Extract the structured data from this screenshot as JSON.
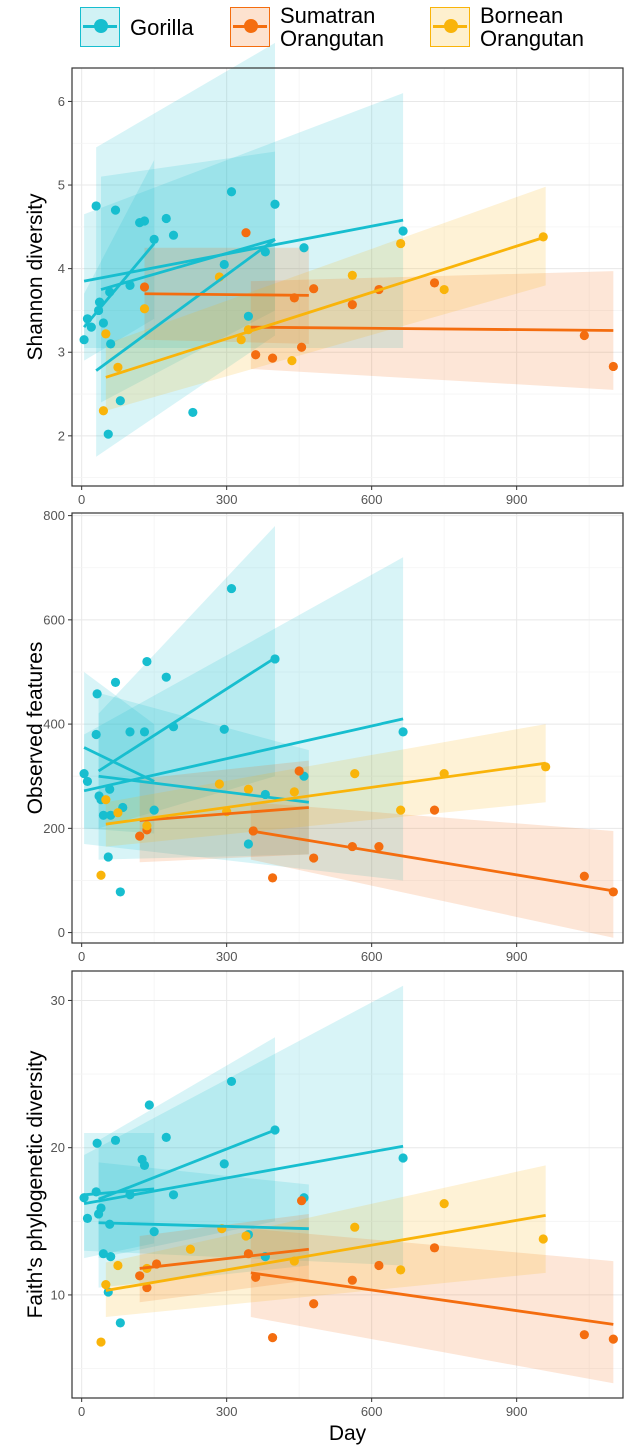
{
  "legend": {
    "items": [
      {
        "label_lines": [
          "Gorilla"
        ],
        "color": "#17BECF"
      },
      {
        "label_lines": [
          "Sumatran",
          "Orangutan"
        ],
        "color": "#F46D0F"
      },
      {
        "label_lines": [
          "Bornean",
          "Orangutan"
        ],
        "color": "#F9B40A"
      }
    ]
  },
  "chart_data": [
    {
      "type": "scatter",
      "ylabel": "Shannon diversity",
      "xlabel": "",
      "xlim": [
        -20,
        1120
      ],
      "ylim": [
        1.4,
        6.4
      ],
      "xticks": [
        0,
        300,
        600,
        900
      ],
      "yticks": [
        2,
        3,
        4,
        5,
        6
      ],
      "grid": true,
      "series": [
        {
          "name": "Gorilla",
          "color": "#17BECF",
          "x": [
            5,
            12,
            20,
            30,
            35,
            37,
            45,
            55,
            58,
            60,
            70,
            80,
            100,
            120,
            130,
            150,
            175,
            190,
            230,
            295,
            310,
            345,
            380,
            400,
            460,
            665
          ],
          "y": [
            3.15,
            3.4,
            3.3,
            4.75,
            3.5,
            3.6,
            3.35,
            2.02,
            3.72,
            3.1,
            4.7,
            2.42,
            3.8,
            4.55,
            4.57,
            4.35,
            4.6,
            4.4,
            2.28,
            4.05,
            4.92,
            3.43,
            4.2,
            4.77,
            4.25,
            4.45
          ],
          "fits": [
            {
              "x": [
                5,
                665
              ],
              "y": [
                3.85,
                4.58
              ],
              "ci_low": [
                3.05,
                3.05
              ],
              "ci_high": [
                4.65,
                6.1
              ]
            },
            {
              "x": [
                30,
                400
              ],
              "y": [
                2.78,
                4.35
              ],
              "ci_low": [
                1.75,
                3.2
              ],
              "ci_high": [
                5.45,
                6.7
              ]
            },
            {
              "x": [
                40,
                400
              ],
              "y": [
                3.75,
                4.35
              ],
              "ci_low": [
                2.4,
                3.5
              ],
              "ci_high": [
                5.1,
                5.4
              ]
            },
            {
              "x": [
                5,
                150
              ],
              "y": [
                3.3,
                4.3
              ],
              "ci_low": [
                2.9,
                3.4
              ],
              "ci_high": [
                3.7,
                5.3
              ]
            }
          ]
        },
        {
          "name": "Sumatran Orangutan",
          "color": "#F46D0F",
          "x": [
            130,
            340,
            360,
            395,
            440,
            455,
            480,
            560,
            615,
            730,
            1040,
            1100
          ],
          "y": [
            3.78,
            4.43,
            2.97,
            2.93,
            3.65,
            3.06,
            3.76,
            3.57,
            3.75,
            3.83,
            3.2,
            2.83
          ],
          "fits": [
            {
              "x": [
                130,
                470
              ],
              "y": [
                3.7,
                3.68
              ],
              "ci_low": [
                3.15,
                3.1
              ],
              "ci_high": [
                4.25,
                4.25
              ]
            },
            {
              "x": [
                350,
                1100
              ],
              "y": [
                3.3,
                3.26
              ],
              "ci_low": [
                2.8,
                2.55
              ],
              "ci_high": [
                3.85,
                3.97
              ]
            }
          ]
        },
        {
          "name": "Bornean Orangutan",
          "color": "#F9B40A",
          "x": [
            45,
            50,
            75,
            130,
            285,
            330,
            345,
            435,
            560,
            660,
            750,
            955
          ],
          "y": [
            2.3,
            3.22,
            2.82,
            3.52,
            3.9,
            3.15,
            3.27,
            2.9,
            3.92,
            4.3,
            3.75,
            4.38
          ],
          "fits": [
            {
              "x": [
                50,
                960
              ],
              "y": [
                2.7,
                4.38
              ],
              "ci_low": [
                2.3,
                3.8
              ],
              "ci_high": [
                3.1,
                4.98
              ]
            }
          ]
        }
      ]
    },
    {
      "type": "scatter",
      "ylabel": "Observed features",
      "xlabel": "",
      "xlim": [
        -20,
        1120
      ],
      "ylim": [
        -20,
        805
      ],
      "xticks": [
        0,
        300,
        600,
        900
      ],
      "yticks": [
        0,
        200,
        400,
        600,
        800
      ],
      "grid": true,
      "series": [
        {
          "name": "Gorilla",
          "color": "#17BECF",
          "x": [
            5,
            12,
            30,
            32,
            36,
            40,
            45,
            55,
            58,
            60,
            70,
            80,
            85,
            100,
            130,
            135,
            150,
            175,
            190,
            295,
            310,
            345,
            380,
            400,
            460,
            665
          ],
          "y": [
            305,
            290,
            380,
            458,
            262,
            255,
            225,
            145,
            275,
            225,
            480,
            78,
            240,
            385,
            385,
            520,
            235,
            490,
            395,
            390,
            660,
            170,
            265,
            525,
            300,
            385
          ],
          "fits": [
            {
              "x": [
                5,
                665
              ],
              "y": [
                272,
                410
              ],
              "ci_low": [
                170,
                100
              ],
              "ci_high": [
                380,
                720
              ]
            },
            {
              "x": [
                35,
                400
              ],
              "y": [
                310,
                527
              ],
              "ci_low": [
                200,
                300
              ],
              "ci_high": [
                420,
                780
              ]
            },
            {
              "x": [
                5,
                150
              ],
              "y": [
                355,
                290
              ],
              "ci_low": [
                200,
                190
              ],
              "ci_high": [
                500,
                400
              ]
            },
            {
              "x": [
                35,
                470
              ],
              "y": [
                300,
                250
              ],
              "ci_low": [
                140,
                150
              ],
              "ci_high": [
                460,
                350
              ]
            }
          ]
        },
        {
          "name": "Sumatran Orangutan",
          "color": "#F46D0F",
          "x": [
            120,
            135,
            355,
            395,
            450,
            480,
            560,
            615,
            730,
            1040,
            1100
          ],
          "y": [
            185,
            197,
            195,
            105,
            310,
            143,
            165,
            165,
            235,
            108,
            78
          ],
          "fits": [
            {
              "x": [
                120,
                470
              ],
              "y": [
                215,
                240
              ],
              "ci_low": [
                135,
                150
              ],
              "ci_high": [
                295,
                330
              ]
            },
            {
              "x": [
                350,
                1100
              ],
              "y": [
                195,
                80
              ],
              "ci_low": [
                140,
                -10
              ],
              "ci_high": [
                250,
                195
              ]
            }
          ]
        },
        {
          "name": "Bornean Orangutan",
          "color": "#F9B40A",
          "x": [
            40,
            50,
            75,
            135,
            285,
            300,
            345,
            440,
            565,
            660,
            750,
            960
          ],
          "y": [
            110,
            255,
            230,
            205,
            285,
            232,
            275,
            270,
            305,
            235,
            305,
            318
          ],
          "fits": [
            {
              "x": [
                50,
                960
              ],
              "y": [
                208,
                325
              ],
              "ci_low": [
                165,
                250
              ],
              "ci_high": [
                250,
                400
              ]
            }
          ]
        }
      ]
    },
    {
      "type": "scatter",
      "ylabel": "Faith's phylogenetic diversity",
      "xlabel": "Day",
      "xlim": [
        -20,
        1120
      ],
      "ylim": [
        3,
        32
      ],
      "xticks": [
        0,
        300,
        600,
        900
      ],
      "yticks": [
        10,
        20,
        30
      ],
      "grid": true,
      "series": [
        {
          "name": "Gorilla",
          "color": "#17BECF",
          "x": [
            5,
            12,
            30,
            32,
            35,
            40,
            45,
            55,
            58,
            60,
            70,
            80,
            100,
            125,
            130,
            140,
            150,
            175,
            190,
            295,
            310,
            345,
            380,
            400,
            460,
            665
          ],
          "y": [
            16.6,
            15.2,
            17.0,
            20.3,
            15.5,
            15.9,
            12.8,
            10.2,
            14.8,
            12.6,
            20.5,
            8.1,
            16.8,
            19.2,
            18.8,
            22.9,
            14.3,
            20.7,
            16.8,
            18.9,
            24.5,
            14.1,
            12.6,
            21.2,
            16.6,
            19.3
          ],
          "fits": [
            {
              "x": [
                5,
                665
              ],
              "y": [
                16.2,
                20.1
              ],
              "ci_low": [
                13.0,
                12.0
              ],
              "ci_high": [
                19.5,
                31.0
              ]
            },
            {
              "x": [
                35,
                400
              ],
              "y": [
                16.5,
                21.2
              ],
              "ci_low": [
                12.5,
                15.0
              ],
              "ci_high": [
                20.5,
                27.5
              ]
            },
            {
              "x": [
                5,
                150
              ],
              "y": [
                16.8,
                17.2
              ],
              "ci_low": [
                12.5,
                13.5
              ],
              "ci_high": [
                21.0,
                21.0
              ]
            },
            {
              "x": [
                35,
                470
              ],
              "y": [
                14.9,
                14.5
              ],
              "ci_low": [
                10.5,
                12.0
              ],
              "ci_high": [
                19.0,
                17.5
              ]
            }
          ]
        },
        {
          "name": "Sumatran Orangutan",
          "color": "#F46D0F",
          "x": [
            120,
            135,
            155,
            345,
            360,
            395,
            455,
            480,
            560,
            615,
            730,
            1040,
            1100
          ],
          "y": [
            11.3,
            10.5,
            12.1,
            12.8,
            11.2,
            7.1,
            16.4,
            9.4,
            11.0,
            12.0,
            13.2,
            7.3,
            7.0
          ],
          "fits": [
            {
              "x": [
                120,
                470
              ],
              "y": [
                11.8,
                13.1
              ],
              "ci_low": [
                9.5,
                11.0
              ],
              "ci_high": [
                14.0,
                15.5
              ]
            },
            {
              "x": [
                350,
                1100
              ],
              "y": [
                11.5,
                8.0
              ],
              "ci_low": [
                8.5,
                4.0
              ],
              "ci_high": [
                14.5,
                12.3
              ]
            }
          ]
        },
        {
          "name": "Bornean Orangutan",
          "color": "#F9B40A",
          "x": [
            40,
            50,
            75,
            135,
            225,
            290,
            340,
            440,
            565,
            660,
            750,
            955
          ],
          "y": [
            6.8,
            10.7,
            12.0,
            11.8,
            13.1,
            14.5,
            14.0,
            12.3,
            14.6,
            11.7,
            16.2,
            13.8
          ],
          "fits": [
            {
              "x": [
                50,
                960
              ],
              "y": [
                10.3,
                15.4
              ],
              "ci_low": [
                8.5,
                11.5
              ],
              "ci_high": [
                12.2,
                18.8
              ]
            }
          ]
        }
      ]
    }
  ]
}
